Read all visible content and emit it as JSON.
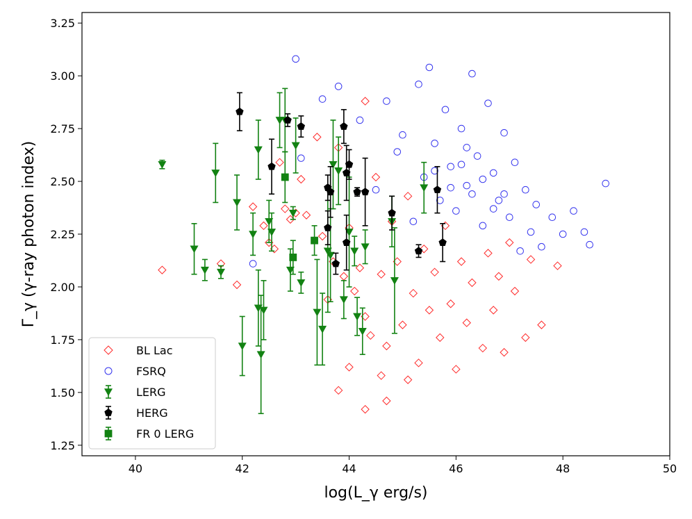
{
  "chart_data": {
    "type": "scatter",
    "xlabel": "log(L_γ erg/s)",
    "ylabel": "Γ_γ (γ-ray photon index)",
    "xlim": [
      39,
      50
    ],
    "ylim": [
      1.2,
      3.3
    ],
    "xticks": [
      "40",
      "42",
      "44",
      "46",
      "48",
      "50"
    ],
    "yticks": [
      "1.25",
      "1.50",
      "1.75",
      "2.00",
      "2.25",
      "2.50",
      "2.75",
      "3.00",
      "3.25"
    ],
    "grid": false,
    "legend_placement": "lower-left",
    "series": [
      {
        "name": "BL Lac",
        "marker": "diamond-open",
        "color": "#ff2a2a",
        "points": [
          [
            40.5,
            2.08
          ],
          [
            41.6,
            2.11
          ],
          [
            41.9,
            2.01
          ],
          [
            42.2,
            2.38
          ],
          [
            42.4,
            2.29
          ],
          [
            42.5,
            2.21
          ],
          [
            42.6,
            2.18
          ],
          [
            42.7,
            2.59
          ],
          [
            42.8,
            2.37
          ],
          [
            42.9,
            2.32
          ],
          [
            43.0,
            2.35
          ],
          [
            43.1,
            2.51
          ],
          [
            43.2,
            2.34
          ],
          [
            43.4,
            2.71
          ],
          [
            43.5,
            2.24
          ],
          [
            43.6,
            1.94
          ],
          [
            43.7,
            2.12
          ],
          [
            43.8,
            2.66
          ],
          [
            43.9,
            2.05
          ],
          [
            44.0,
            2.28
          ],
          [
            44.1,
            1.98
          ],
          [
            44.2,
            2.09
          ],
          [
            44.3,
            2.88
          ],
          [
            44.3,
            1.86
          ],
          [
            44.4,
            1.77
          ],
          [
            44.5,
            2.52
          ],
          [
            44.6,
            2.06
          ],
          [
            44.7,
            1.72
          ],
          [
            44.8,
            2.31
          ],
          [
            44.9,
            2.12
          ],
          [
            45.0,
            1.82
          ],
          [
            45.1,
            2.43
          ],
          [
            45.2,
            1.97
          ],
          [
            45.3,
            1.64
          ],
          [
            45.4,
            2.18
          ],
          [
            45.5,
            1.89
          ],
          [
            45.6,
            2.07
          ],
          [
            45.7,
            1.76
          ],
          [
            45.8,
            2.29
          ],
          [
            45.9,
            1.92
          ],
          [
            46.0,
            1.61
          ],
          [
            46.1,
            2.12
          ],
          [
            46.2,
            1.83
          ],
          [
            46.3,
            2.02
          ],
          [
            46.5,
            1.71
          ],
          [
            46.6,
            2.16
          ],
          [
            46.7,
            1.89
          ],
          [
            46.8,
            2.05
          ],
          [
            46.9,
            1.69
          ],
          [
            47.0,
            2.21
          ],
          [
            47.1,
            1.98
          ],
          [
            47.3,
            1.76
          ],
          [
            47.4,
            2.13
          ],
          [
            47.6,
            1.82
          ],
          [
            47.9,
            2.1
          ],
          [
            44.3,
            1.42
          ],
          [
            44.7,
            1.46
          ],
          [
            43.8,
            1.51
          ],
          [
            45.1,
            1.56
          ],
          [
            44.0,
            1.62
          ],
          [
            44.6,
            1.58
          ]
        ]
      },
      {
        "name": "FSRQ",
        "marker": "circle-open",
        "color": "#3333ee",
        "points": [
          [
            43.0,
            3.08
          ],
          [
            42.2,
            2.11
          ],
          [
            43.1,
            2.61
          ],
          [
            43.5,
            2.89
          ],
          [
            43.8,
            2.95
          ],
          [
            44.2,
            2.79
          ],
          [
            44.5,
            2.46
          ],
          [
            44.7,
            2.88
          ],
          [
            44.9,
            2.64
          ],
          [
            45.0,
            2.72
          ],
          [
            45.2,
            2.31
          ],
          [
            45.3,
            2.96
          ],
          [
            45.4,
            2.52
          ],
          [
            45.5,
            3.04
          ],
          [
            45.6,
            2.68
          ],
          [
            45.7,
            2.41
          ],
          [
            45.8,
            2.84
          ],
          [
            45.9,
            2.57
          ],
          [
            46.0,
            2.36
          ],
          [
            46.1,
            2.75
          ],
          [
            46.2,
            2.48
          ],
          [
            46.3,
            3.01
          ],
          [
            46.4,
            2.62
          ],
          [
            46.5,
            2.29
          ],
          [
            46.6,
            2.87
          ],
          [
            46.7,
            2.54
          ],
          [
            46.8,
            2.41
          ],
          [
            46.9,
            2.73
          ],
          [
            47.0,
            2.33
          ],
          [
            47.1,
            2.59
          ],
          [
            47.2,
            2.17
          ],
          [
            47.3,
            2.46
          ],
          [
            47.4,
            2.26
          ],
          [
            47.5,
            2.39
          ],
          [
            47.6,
            2.19
          ],
          [
            47.8,
            2.33
          ],
          [
            48.0,
            2.25
          ],
          [
            48.2,
            2.36
          ],
          [
            48.4,
            2.26
          ],
          [
            48.5,
            2.2
          ],
          [
            48.8,
            2.49
          ],
          [
            46.3,
            2.44
          ],
          [
            46.5,
            2.51
          ],
          [
            46.1,
            2.58
          ],
          [
            45.9,
            2.47
          ],
          [
            46.7,
            2.37
          ],
          [
            46.2,
            2.66
          ],
          [
            45.6,
            2.55
          ],
          [
            46.9,
            2.44
          ]
        ]
      },
      {
        "name": "LERG",
        "marker": "triangle-down-filled",
        "color": "#128212",
        "points": [
          [
            40.5,
            2.58,
            0.02
          ],
          [
            41.1,
            2.18,
            0.12
          ],
          [
            41.3,
            2.08,
            0.05
          ],
          [
            41.5,
            2.54,
            0.14
          ],
          [
            41.6,
            2.07,
            0.03
          ],
          [
            41.9,
            2.4,
            0.13
          ],
          [
            42.0,
            1.72,
            0.14
          ],
          [
            42.2,
            2.25,
            0.1
          ],
          [
            42.3,
            2.65,
            0.14
          ],
          [
            42.3,
            1.9,
            0.18
          ],
          [
            42.35,
            1.68,
            0.28
          ],
          [
            42.4,
            1.89,
            0.14
          ],
          [
            42.5,
            2.31,
            0.1
          ],
          [
            42.55,
            2.26,
            0.09
          ],
          [
            42.7,
            2.79,
            0.13
          ],
          [
            42.8,
            2.79,
            0.15
          ],
          [
            42.9,
            2.08,
            0.1
          ],
          [
            42.95,
            2.35,
            0.03
          ],
          [
            43.0,
            2.67,
            0.13
          ],
          [
            43.1,
            2.02,
            0.05
          ],
          [
            43.4,
            1.88,
            0.25
          ],
          [
            43.5,
            1.8,
            0.17
          ],
          [
            43.6,
            2.17,
            0.29
          ],
          [
            43.65,
            2.15,
            0.22
          ],
          [
            43.7,
            2.58,
            0.21
          ],
          [
            43.8,
            2.55,
            0.16
          ],
          [
            43.9,
            1.94,
            0.09
          ],
          [
            44.0,
            2.26,
            0.26
          ],
          [
            44.1,
            2.17,
            0.07
          ],
          [
            44.15,
            1.86,
            0.09
          ],
          [
            44.25,
            1.79,
            0.11
          ],
          [
            44.3,
            2.19,
            0.08
          ],
          [
            44.8,
            2.31,
            0.12
          ],
          [
            44.85,
            2.03,
            0.25
          ],
          [
            45.4,
            2.47,
            0.12
          ]
        ]
      },
      {
        "name": "HERG",
        "marker": "pentagon-filled",
        "color": "#000000",
        "points": [
          [
            41.95,
            2.83,
            0.09
          ],
          [
            42.55,
            2.57,
            0.13
          ],
          [
            42.85,
            2.79,
            0.03
          ],
          [
            43.1,
            2.76,
            0.05
          ],
          [
            43.6,
            2.47,
            0.06
          ],
          [
            43.65,
            2.45,
            0.12
          ],
          [
            43.6,
            2.28,
            0.08
          ],
          [
            43.75,
            2.11,
            0.05
          ],
          [
            43.9,
            2.76,
            0.08
          ],
          [
            43.95,
            2.21,
            0.13
          ],
          [
            43.95,
            2.54,
            0.13
          ],
          [
            44.0,
            2.58,
            0.07
          ],
          [
            44.15,
            2.45,
            0.02
          ],
          [
            44.3,
            2.45,
            0.16
          ],
          [
            44.8,
            2.35,
            0.08
          ],
          [
            45.3,
            2.17,
            0.03
          ],
          [
            45.65,
            2.46,
            0.11
          ],
          [
            45.75,
            2.21,
            0.09
          ]
        ]
      },
      {
        "name": "FR 0 LERG",
        "marker": "square-filled",
        "color": "#128212",
        "points": [
          [
            42.8,
            2.52,
            0.12
          ],
          [
            42.95,
            2.14,
            0.08
          ],
          [
            43.35,
            2.22,
            0.07
          ]
        ]
      }
    ]
  }
}
